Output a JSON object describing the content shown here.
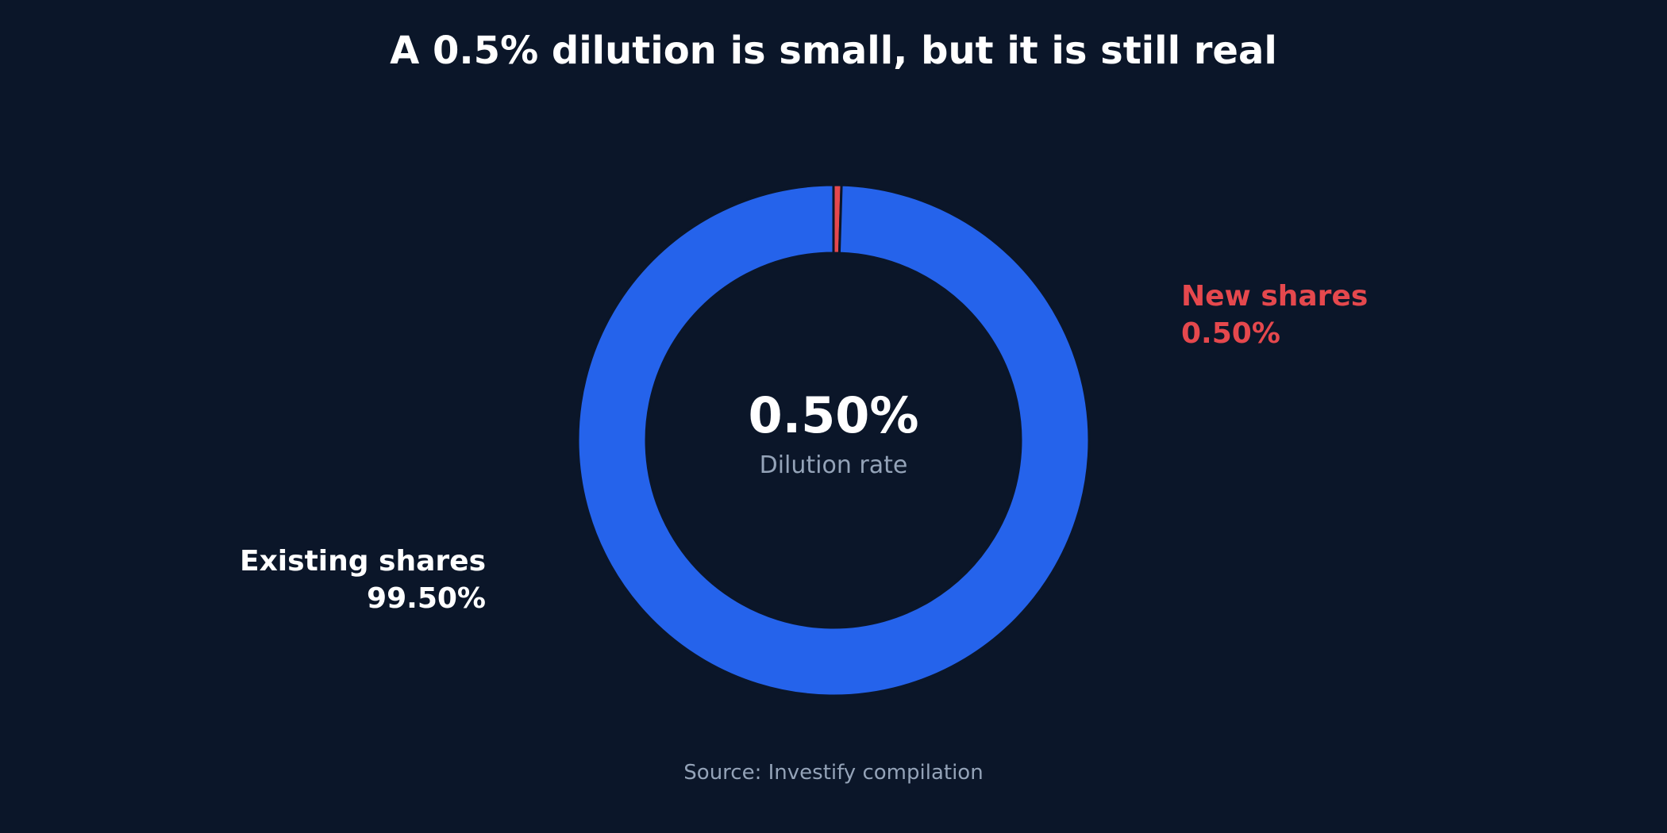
{
  "chart_data": {
    "type": "pie",
    "title": "A 0.5% dilution is small, but it is still real",
    "center": {
      "value": "0.50%",
      "label": "Dilution rate"
    },
    "slices": [
      {
        "label": "New shares",
        "value": 0.5,
        "value_label": "0.50%",
        "color": "#e5484d"
      },
      {
        "label": "Existing shares",
        "value": 99.5,
        "value_label": "99.50%",
        "color": "#2563eb"
      }
    ],
    "label_colors": {
      "New shares": "#e5484d",
      "Existing shares": "#ffffff"
    },
    "source": "Source: Investify compilation"
  }
}
